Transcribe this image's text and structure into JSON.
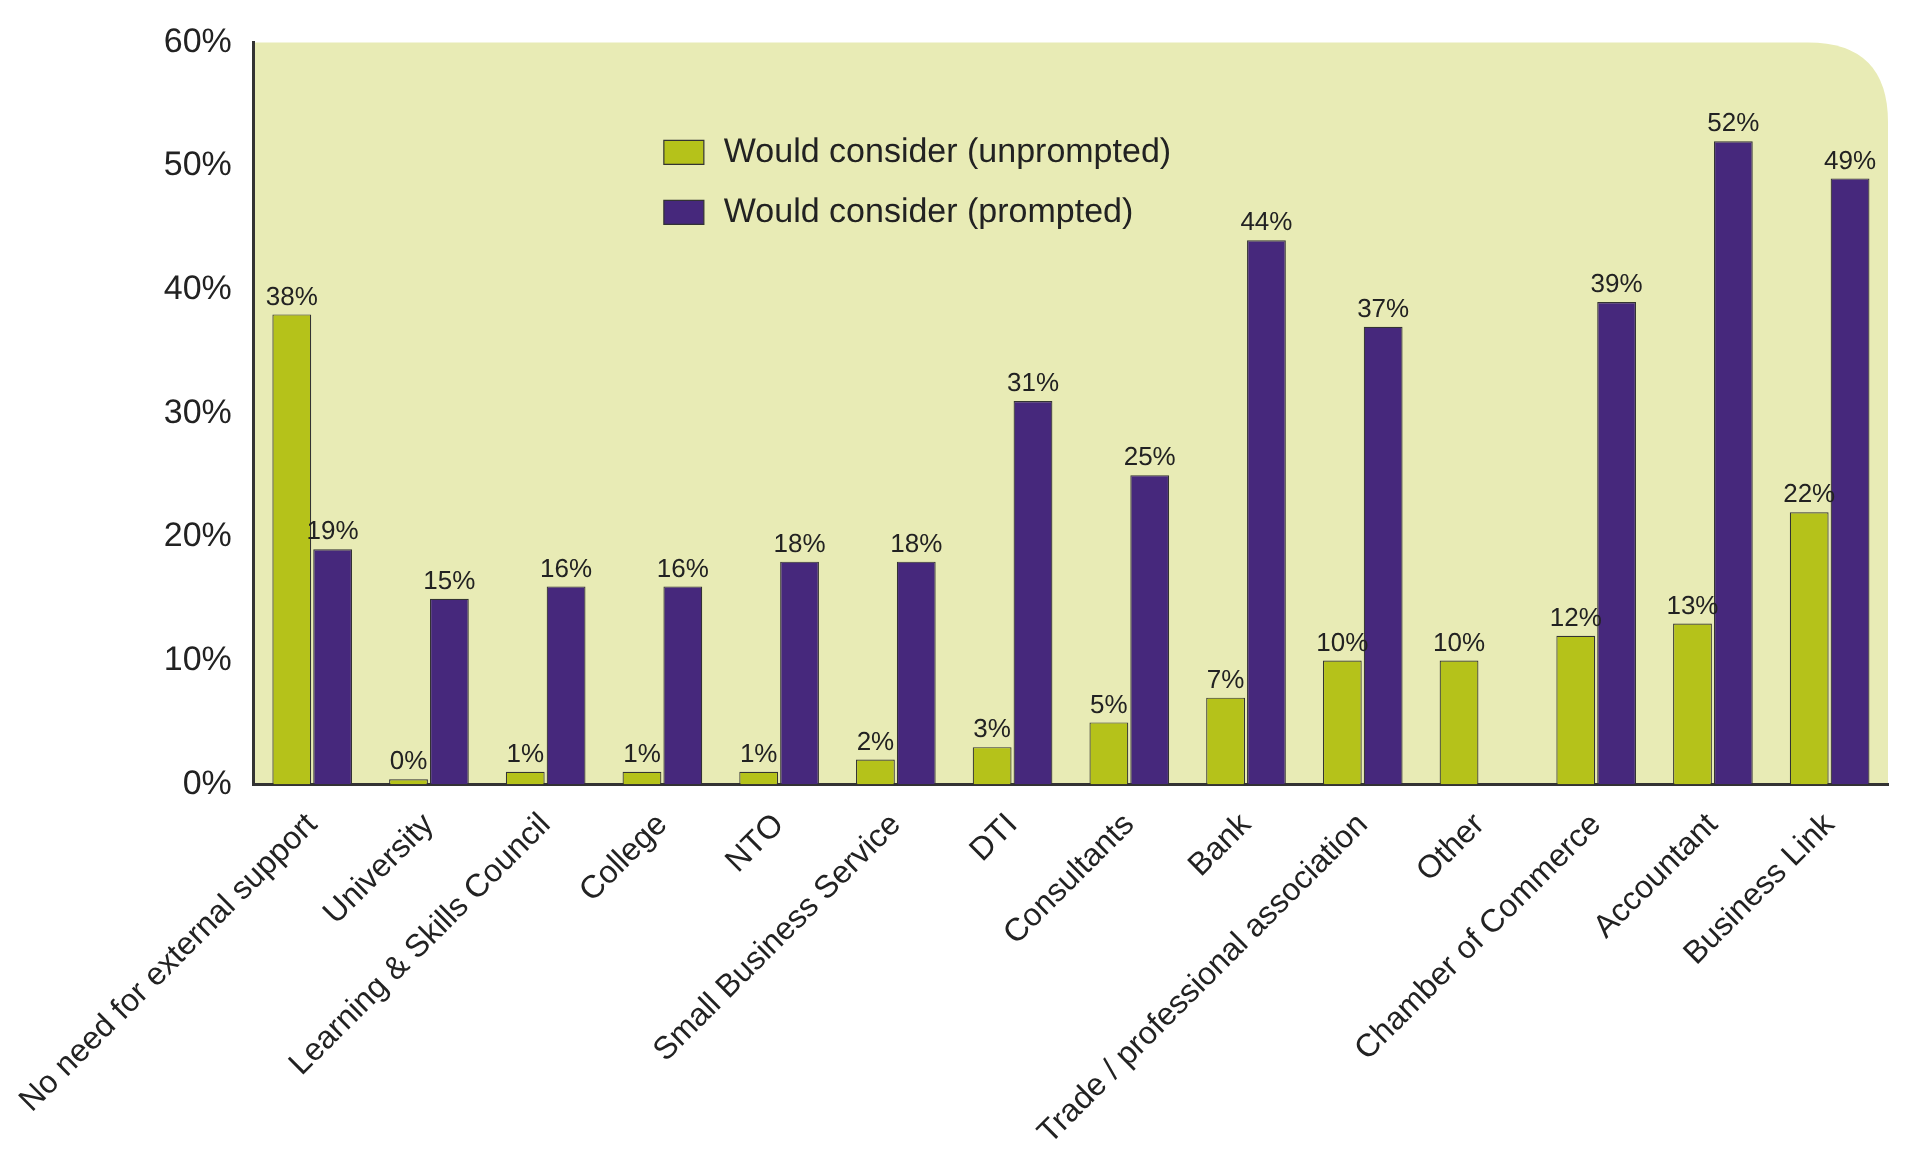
{
  "chart_data": {
    "type": "bar",
    "categories": [
      "No need for external support",
      "University",
      "Learning & Skills Council",
      "College",
      "NTO",
      "Small Business Service",
      "DTI",
      "Consultants",
      "Bank",
      "Trade / professional association",
      "Other",
      "Chamber of Commerce",
      "Accountant",
      "Business Link"
    ],
    "series": [
      {
        "name": "Would consider (unprompted)",
        "color": "#b5c21a",
        "values": [
          38,
          0.4,
          1,
          1,
          1,
          2,
          3,
          5,
          7,
          10,
          10,
          12,
          13,
          22
        ],
        "value_labels": [
          "38%",
          "0%",
          "1%",
          "1%",
          "1%",
          "2%",
          "3%",
          "5%",
          "7%",
          "10%",
          "10%",
          "12%",
          "13%",
          "22%"
        ]
      },
      {
        "name": "Would consider (prompted)",
        "color": "#46287c",
        "values": [
          19,
          15,
          16,
          16,
          18,
          18,
          31,
          25,
          44,
          37,
          null,
          39,
          52,
          49
        ],
        "value_labels": [
          "19%",
          "15%",
          "16%",
          "16%",
          "18%",
          "18%",
          "31%",
          "25%",
          "44%",
          "37%",
          null,
          "39%",
          "52%",
          "49%"
        ]
      }
    ],
    "ylim": [
      0,
      60
    ],
    "yticks": [
      {
        "value": 0,
        "label": "0%"
      },
      {
        "value": 10,
        "label": "10%"
      },
      {
        "value": 20,
        "label": "20%"
      },
      {
        "value": 30,
        "label": "30%"
      },
      {
        "value": 40,
        "label": "40%"
      },
      {
        "value": 50,
        "label": "50%"
      },
      {
        "value": 60,
        "label": "60%"
      }
    ],
    "grid": false,
    "legend": "top left"
  }
}
